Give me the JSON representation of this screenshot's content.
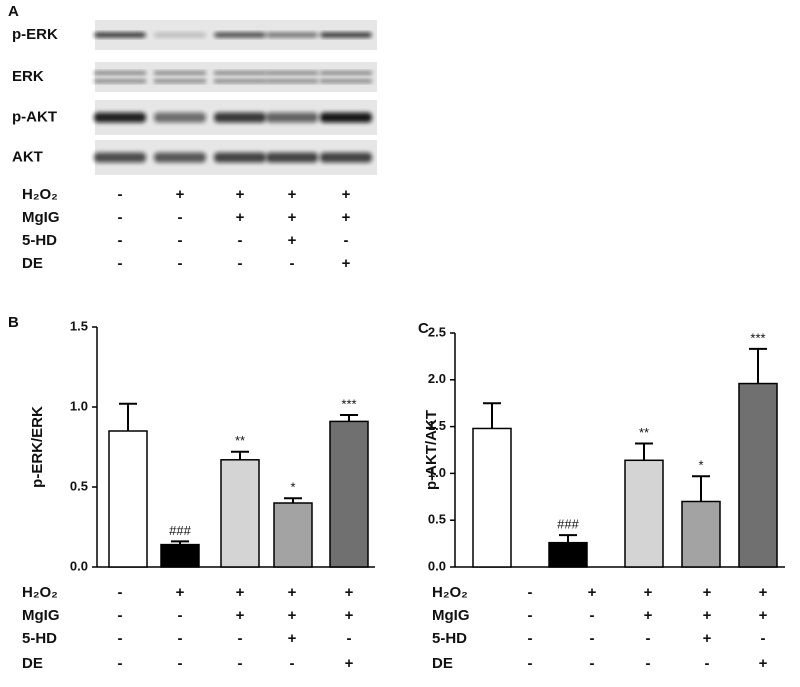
{
  "panel_a": {
    "label": "A",
    "blots": [
      "p-ERK",
      "ERK",
      "p-AKT",
      "AKT"
    ]
  },
  "conditions": {
    "rows": [
      {
        "label": "H₂O₂",
        "signs": [
          "-",
          "+",
          "+",
          "+",
          "+"
        ]
      },
      {
        "label": "MgIG",
        "signs": [
          "-",
          "-",
          "+",
          "+",
          "+"
        ]
      },
      {
        "label": "5-HD",
        "signs": [
          "-",
          "-",
          "-",
          "+",
          "-"
        ]
      },
      {
        "label": "DE",
        "signs": [
          "-",
          "-",
          "-",
          "-",
          "+"
        ]
      }
    ]
  },
  "chart_data": [
    {
      "type": "bar",
      "panel": "B",
      "ylabel": "p-ERK/ERK",
      "values": [
        0.85,
        0.14,
        0.67,
        0.4,
        0.91
      ],
      "errors": [
        0.17,
        0.02,
        0.05,
        0.03,
        0.04
      ],
      "annotations": [
        null,
        "###",
        "**",
        "*",
        "***"
      ],
      "colors": [
        "#ffffff",
        "#000000",
        "#d4d4d4",
        "#a3a3a3",
        "#707070"
      ],
      "ylim": [
        0,
        1.5
      ],
      "yticks": [
        {
          "value": 0,
          "label": "0.0"
        },
        0.5,
        {
          "value": 1,
          "label": "1.0"
        },
        1.5
      ]
    },
    {
      "type": "bar",
      "panel": "C",
      "ylabel": "p-AKT/AKT",
      "values": [
        1.48,
        0.26,
        1.14,
        0.7,
        1.96
      ],
      "errors": [
        0.27,
        0.08,
        0.18,
        0.27,
        0.37
      ],
      "annotations": [
        null,
        "###",
        "**",
        "*",
        "***"
      ],
      "colors": [
        "#ffffff",
        "#000000",
        "#d4d4d4",
        "#a3a3a3",
        "#707070"
      ],
      "ylim": [
        0,
        2.5
      ],
      "yticks": [
        {
          "value": 0,
          "label": "0.0"
        },
        0.5,
        {
          "value": 1,
          "label": "1.0"
        },
        1.5,
        {
          "value": 2,
          "label": "2.0"
        },
        2.5
      ]
    }
  ]
}
